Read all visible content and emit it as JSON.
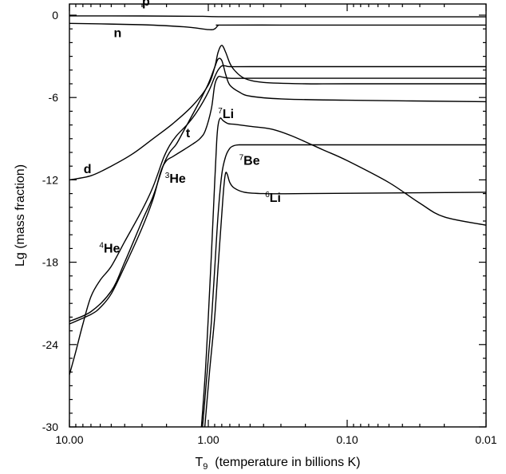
{
  "chart_data": {
    "type": "line",
    "title": "",
    "xlabel_main": "T",
    "xlabel_sub": "9",
    "xlabel_rest": "  (temperature in billions K)",
    "ylabel": "Lg (mass fraction)",
    "x_scale": "log",
    "x_reversed": true,
    "xlim": [
      10.0,
      0.01
    ],
    "ylim": [
      -30,
      1
    ],
    "x_ticks": [
      {
        "value": 10.0,
        "label": "10.00"
      },
      {
        "value": 1.0,
        "label": "1.00"
      },
      {
        "value": 0.1,
        "label": "0.10"
      },
      {
        "value": 0.01,
        "label": "0.01"
      }
    ],
    "y_ticks": [
      {
        "value": 0,
        "label": "0"
      },
      {
        "value": -6,
        "label": "-6"
      },
      {
        "value": -12,
        "label": "-12"
      },
      {
        "value": -18,
        "label": "-18"
      },
      {
        "value": -24,
        "label": "-24"
      },
      {
        "value": -30,
        "label": "-30"
      }
    ],
    "series": [
      {
        "name": "p",
        "points": [
          [
            10,
            -0.05
          ],
          [
            3,
            -0.06
          ],
          [
            1.2,
            -0.08
          ],
          [
            0.8,
            -0.11
          ],
          [
            0.3,
            -0.12
          ],
          [
            0.1,
            -0.12
          ],
          [
            0.01,
            -0.12
          ]
        ]
      },
      {
        "name": "n",
        "points": [
          [
            10,
            -0.6
          ],
          [
            3,
            -0.7
          ],
          [
            1.5,
            -0.85
          ],
          [
            1.0,
            -1.05
          ],
          [
            0.9,
            -1.0
          ],
          [
            0.85,
            -0.75
          ],
          [
            0.8,
            -0.72
          ],
          [
            0.3,
            -0.72
          ],
          [
            0.1,
            -0.72
          ],
          [
            0.01,
            -0.72
          ]
        ]
      },
      {
        "name": "d",
        "points": [
          [
            10,
            -12.0
          ],
          [
            7,
            -11.7
          ],
          [
            5,
            -11.0
          ],
          [
            3.5,
            -10.1
          ],
          [
            2.5,
            -9.0
          ],
          [
            1.8,
            -7.9
          ],
          [
            1.3,
            -6.6
          ],
          [
            1.0,
            -5.1
          ],
          [
            0.9,
            -3.8
          ],
          [
            0.85,
            -2.7
          ],
          [
            0.8,
            -2.2
          ],
          [
            0.75,
            -2.7
          ],
          [
            0.7,
            -3.5
          ],
          [
            0.65,
            -4.0
          ],
          [
            0.55,
            -4.6
          ],
          [
            0.4,
            -4.9
          ],
          [
            0.2,
            -5.0
          ],
          [
            0.1,
            -5.0
          ],
          [
            0.01,
            -5.0
          ]
        ]
      },
      {
        "name": "4He",
        "points": [
          [
            10,
            -26.2
          ],
          [
            9,
            -24.5
          ],
          [
            8,
            -22.5
          ],
          [
            7,
            -20.5
          ],
          [
            6,
            -19.3
          ],
          [
            5,
            -18.3
          ],
          [
            4,
            -16.5
          ],
          [
            3,
            -14.2
          ],
          [
            2.5,
            -12.5
          ],
          [
            2.1,
            -10.4
          ],
          [
            1.9,
            -9.5
          ],
          [
            1.7,
            -8.8
          ],
          [
            1.4,
            -7.9
          ],
          [
            1.2,
            -7.0
          ],
          [
            1.0,
            -5.6
          ],
          [
            0.9,
            -4.5
          ],
          [
            0.85,
            -4.0
          ],
          [
            0.8,
            -3.7
          ],
          [
            0.75,
            -3.7
          ],
          [
            0.7,
            -3.75
          ],
          [
            0.5,
            -3.75
          ],
          [
            0.1,
            -3.75
          ],
          [
            0.01,
            -3.75
          ]
        ]
      },
      {
        "name": "t",
        "points": [
          [
            10,
            -22.5
          ],
          [
            7,
            -21.8
          ],
          [
            6,
            -21.3
          ],
          [
            5,
            -20.3
          ],
          [
            4,
            -18.3
          ],
          [
            3,
            -15.5
          ],
          [
            2.5,
            -13.4
          ],
          [
            2.2,
            -11.4
          ],
          [
            2.0,
            -10.6
          ],
          [
            1.8,
            -10.3
          ],
          [
            1.5,
            -9.8
          ],
          [
            1.3,
            -9.4
          ],
          [
            1.15,
            -9.0
          ],
          [
            1.05,
            -8.4
          ],
          [
            0.95,
            -6.8
          ],
          [
            0.9,
            -5.1
          ],
          [
            0.85,
            -4.5
          ],
          [
            0.8,
            -4.5
          ],
          [
            0.7,
            -4.6
          ],
          [
            0.5,
            -4.6
          ],
          [
            0.1,
            -4.6
          ],
          [
            0.01,
            -4.6
          ]
        ]
      },
      {
        "name": "3He",
        "points": [
          [
            10,
            -22.3
          ],
          [
            7,
            -21.6
          ],
          [
            5,
            -20.1
          ],
          [
            4,
            -18.0
          ],
          [
            3,
            -15.0
          ],
          [
            2.5,
            -13.2
          ],
          [
            2.1,
            -10.9
          ],
          [
            1.9,
            -10.0
          ],
          [
            1.7,
            -9.4
          ],
          [
            1.5,
            -8.4
          ],
          [
            1.2,
            -6.6
          ],
          [
            1.0,
            -5.0
          ],
          [
            0.9,
            -3.8
          ],
          [
            0.85,
            -3.2
          ],
          [
            0.8,
            -3.3
          ],
          [
            0.75,
            -4.3
          ],
          [
            0.7,
            -5.1
          ],
          [
            0.6,
            -5.6
          ],
          [
            0.5,
            -5.9
          ],
          [
            0.3,
            -6.1
          ],
          [
            0.1,
            -6.2
          ],
          [
            0.01,
            -6.3
          ]
        ]
      },
      {
        "name": "7Li",
        "points": [
          [
            1.12,
            -30
          ],
          [
            1.05,
            -26
          ],
          [
            1.0,
            -22
          ],
          [
            0.95,
            -17.4
          ],
          [
            0.9,
            -12.2
          ],
          [
            0.87,
            -9.2
          ],
          [
            0.85,
            -8.0
          ],
          [
            0.82,
            -7.5
          ],
          [
            0.78,
            -7.7
          ],
          [
            0.72,
            -7.9
          ],
          [
            0.65,
            -7.95
          ],
          [
            0.5,
            -8.1
          ],
          [
            0.35,
            -8.3
          ],
          [
            0.25,
            -8.8
          ],
          [
            0.15,
            -9.8
          ],
          [
            0.1,
            -10.6
          ],
          [
            0.05,
            -12.2
          ],
          [
            0.03,
            -13.7
          ],
          [
            0.02,
            -14.7
          ],
          [
            0.01,
            -15.3
          ]
        ]
      },
      {
        "name": "7Be",
        "points": [
          [
            1.1,
            -30
          ],
          [
            1.0,
            -25
          ],
          [
            0.95,
            -22.3
          ],
          [
            0.9,
            -18.5
          ],
          [
            0.85,
            -14.5
          ],
          [
            0.8,
            -11.6
          ],
          [
            0.75,
            -10.3
          ],
          [
            0.7,
            -9.7
          ],
          [
            0.65,
            -9.5
          ],
          [
            0.6,
            -9.45
          ],
          [
            0.5,
            -9.45
          ],
          [
            0.1,
            -9.45
          ],
          [
            0.01,
            -9.45
          ]
        ]
      },
      {
        "name": "6Li",
        "points": [
          [
            1.06,
            -30
          ],
          [
            0.98,
            -26
          ],
          [
            0.9,
            -22
          ],
          [
            0.85,
            -18.3
          ],
          [
            0.8,
            -14.5
          ],
          [
            0.77,
            -12.3
          ],
          [
            0.75,
            -11.5
          ],
          [
            0.73,
            -11.6
          ],
          [
            0.7,
            -12.2
          ],
          [
            0.65,
            -12.6
          ],
          [
            0.55,
            -12.9
          ],
          [
            0.4,
            -13.0
          ],
          [
            0.2,
            -13.0
          ],
          [
            0.01,
            -12.9
          ]
        ]
      }
    ],
    "annotations": [
      {
        "id": "p",
        "sup": "",
        "main": "p",
        "at": [
          3.0,
          0.7
        ]
      },
      {
        "id": "n",
        "sup": "",
        "main": "n",
        "at": [
          4.8,
          -1.6
        ]
      },
      {
        "id": "d",
        "sup": "",
        "main": "d",
        "at": [
          7.9,
          -11.5
        ]
      },
      {
        "id": "t",
        "sup": "",
        "main": "t",
        "at": [
          1.45,
          -8.9
        ]
      },
      {
        "id": "3He",
        "sup": "3",
        "main": "He",
        "at": [
          2.05,
          -12.2
        ]
      },
      {
        "id": "4He",
        "sup": "4",
        "main": "He",
        "at": [
          6.1,
          -17.3
        ]
      },
      {
        "id": "7Li",
        "sup": "7",
        "main": "Li",
        "at": [
          0.85,
          -7.5
        ]
      },
      {
        "id": "7Be",
        "sup": "7",
        "main": "Be",
        "at": [
          0.6,
          -10.9
        ]
      },
      {
        "id": "6Li",
        "sup": "6",
        "main": "Li",
        "at": [
          0.39,
          -13.6
        ]
      }
    ]
  }
}
